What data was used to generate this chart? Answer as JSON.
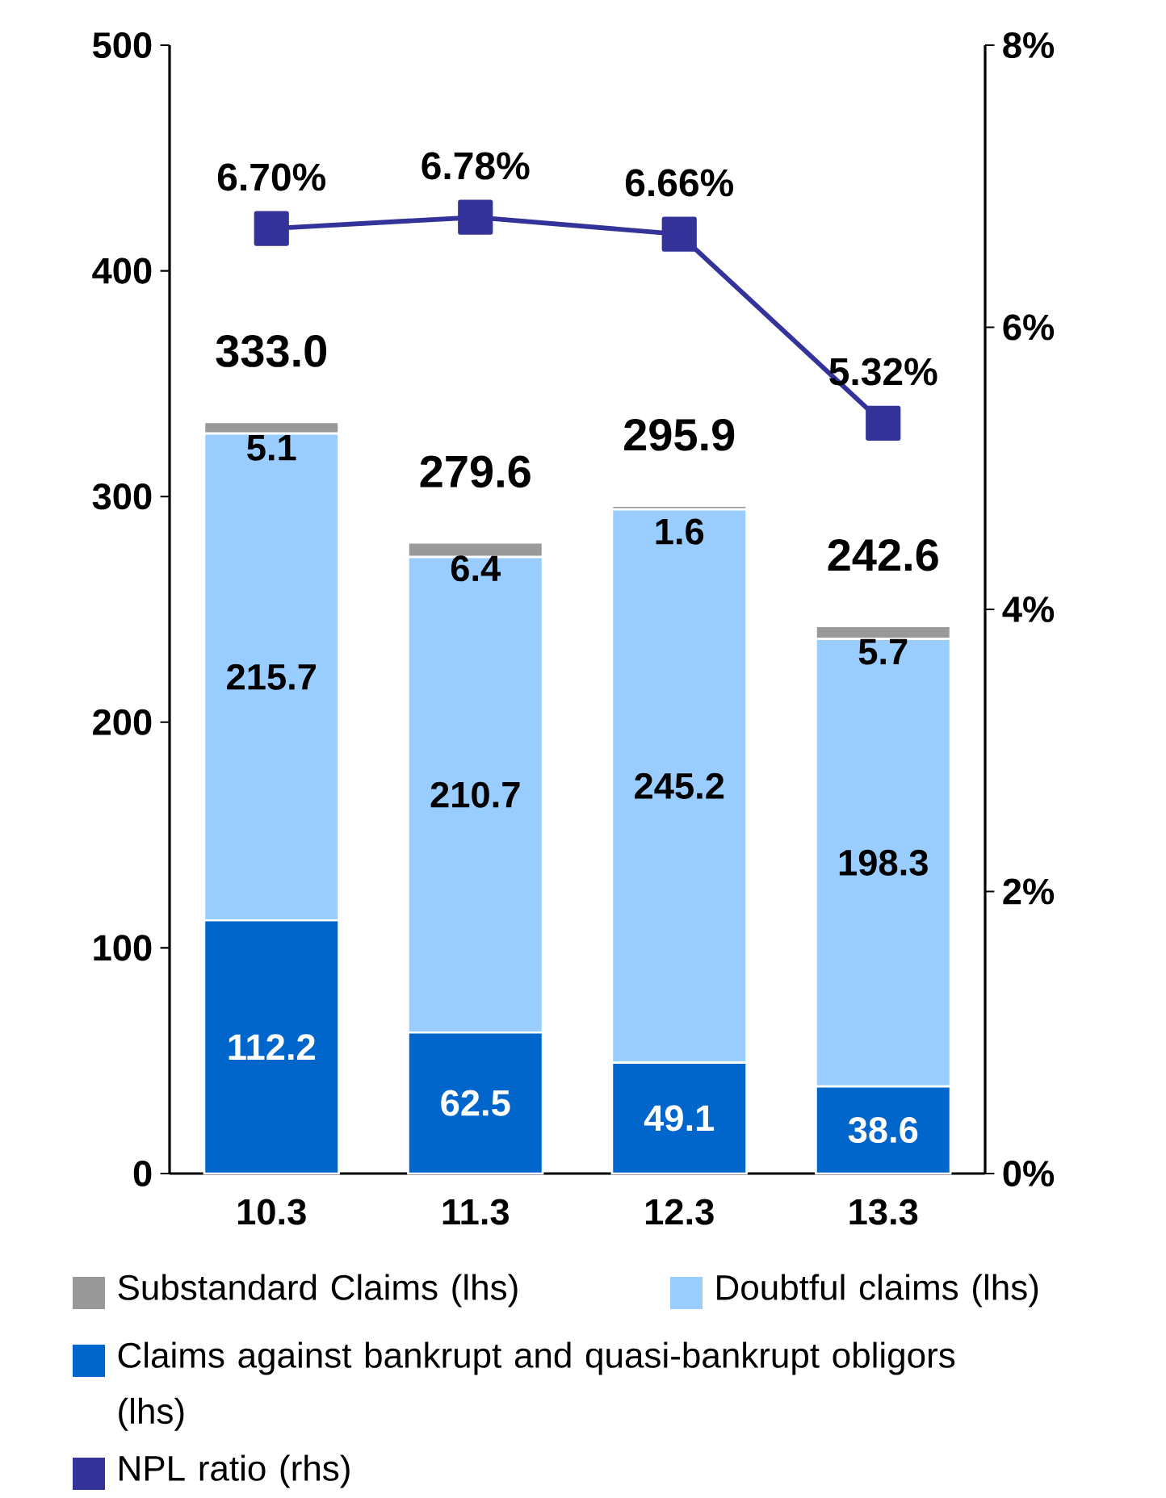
{
  "chart_data": {
    "type": "bar",
    "stacked": true,
    "categories": [
      "10.3",
      "11.3",
      "12.3",
      "13.3"
    ],
    "series": [
      {
        "name": "Claims against bankrupt and quasi-bankrupt obligors (lhs)",
        "color": "#0066cc",
        "values": [
          112.2,
          62.5,
          49.1,
          38.6
        ],
        "value_labels": [
          "112.2",
          "62.5",
          "49.1",
          "38.6"
        ]
      },
      {
        "name": "Doubtful claims (lhs)",
        "color": "#99ccff",
        "values": [
          215.7,
          210.7,
          245.2,
          198.3
        ],
        "value_labels": [
          "215.7",
          "210.7",
          "245.2",
          "198.3"
        ]
      },
      {
        "name": "Substandard Claims (lhs)",
        "color": "#999999",
        "values": [
          5.1,
          6.4,
          1.6,
          5.7
        ],
        "value_labels": [
          "5.1",
          "6.4",
          "1.6",
          "5.7"
        ]
      },
      {
        "name": "NPL ratio (rhs)",
        "type": "line",
        "axis": "y2",
        "color": "#333399",
        "values": [
          6.7,
          6.78,
          6.66,
          5.32
        ],
        "value_labels": [
          "6.70%",
          "6.78%",
          "6.66%",
          "5.32%"
        ]
      }
    ],
    "totals": [
      "333.0",
      "279.6",
      "295.9",
      "242.6"
    ],
    "ylim": [
      0,
      500
    ],
    "yticks": [
      0,
      100,
      200,
      300,
      400,
      500
    ],
    "y2lim": [
      0,
      8
    ],
    "y2ticks": [
      {
        "value": 0,
        "label": "0%"
      },
      {
        "value": 2,
        "label": "2%"
      },
      {
        "value": 4,
        "label": "4%"
      },
      {
        "value": 6,
        "label": "6%"
      },
      {
        "value": 8,
        "label": "8%"
      }
    ],
    "legend": "bottom",
    "marker": "square",
    "grid": false
  }
}
